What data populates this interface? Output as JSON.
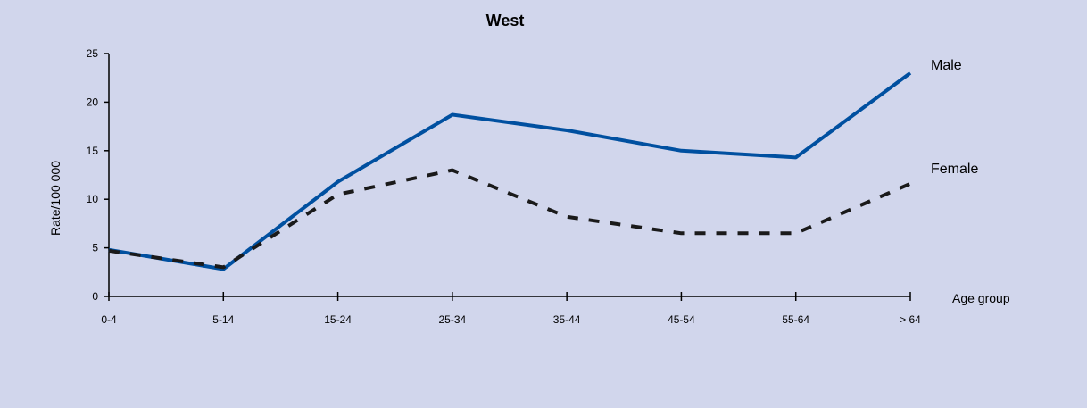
{
  "chart_data": {
    "type": "line",
    "title": "West",
    "xlabel": "Age group",
    "ylabel": "Rate/100 000",
    "categories": [
      "0-4",
      "5-14",
      "15-24",
      "25-34",
      "35-44",
      "45-54",
      "55-64",
      "> 64"
    ],
    "ylim": [
      0,
      25
    ],
    "yticks": [
      0,
      5,
      10,
      15,
      20,
      25
    ],
    "grid": false,
    "legend": "direct labels at right end of lines",
    "series": [
      {
        "name": "Male",
        "values": [
          4.8,
          2.8,
          11.8,
          18.7,
          17.1,
          15.0,
          14.3,
          23.0
        ],
        "color": "#0050a0",
        "style": "solid"
      },
      {
        "name": "Female",
        "values": [
          4.7,
          3.0,
          10.5,
          13.0,
          8.2,
          6.5,
          6.5,
          11.6
        ],
        "color": "#1a1a1a",
        "style": "dashed"
      }
    ]
  }
}
